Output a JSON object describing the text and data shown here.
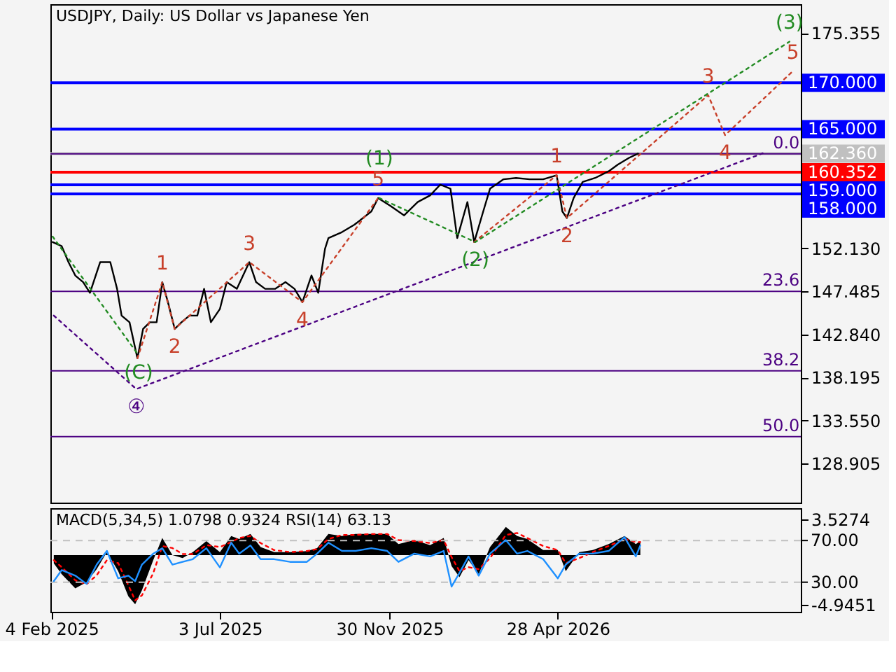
{
  "chart_data": [
    {
      "type": "line",
      "title": "USDJPY, Daily:  US Dollar vs Japanese Yen",
      "xlim": [
        "2025-02-03",
        "2026-11-29"
      ],
      "ylim": [
        124.68,
        178.49
      ],
      "yticks": [
        {
          "value": 175.355,
          "label": "175.355"
        },
        {
          "value": 152.13,
          "label": "152.130"
        },
        {
          "value": 147.485,
          "label": "147.485"
        },
        {
          "value": 142.84,
          "label": "142.840"
        },
        {
          "value": 138.195,
          "label": "138.195"
        },
        {
          "value": 133.55,
          "label": "133.550"
        },
        {
          "value": 128.905,
          "label": "128.905"
        }
      ],
      "tick_labels": "y",
      "series": [
        {
          "color": "#000000",
          "line_style": "solid",
          "x": [
            "2025-02-05",
            "2025-02-13",
            "2025-02-19",
            "2025-02-25",
            "2025-03-04",
            "2025-03-10",
            "2025-03-19",
            "2025-03-28",
            "2025-04-03",
            "2025-04-07",
            "2025-04-14",
            "2025-04-21",
            "2025-04-26",
            "2025-05-02",
            "2025-05-08",
            "2025-05-13",
            "2025-05-18",
            "2025-05-24",
            "2025-05-30",
            "2025-06-06",
            "2025-06-13",
            "2025-06-19",
            "2025-06-25",
            "2025-07-03",
            "2025-07-09",
            "2025-07-18",
            "2025-07-29",
            "2025-08-04",
            "2025-08-12",
            "2025-08-21",
            "2025-08-30",
            "2025-09-07",
            "2025-09-14",
            "2025-09-22",
            "2025-09-28",
            "2025-10-04",
            "2025-10-07",
            "2025-10-18",
            "2025-10-30",
            "2025-11-14",
            "2025-11-20",
            "2025-12-01",
            "2025-12-13",
            "2025-12-25",
            "2026-01-05",
            "2026-01-14",
            "2026-01-23",
            "2026-01-29",
            "2026-02-07",
            "2026-02-13",
            "2026-02-21",
            "2026-02-27",
            "2026-03-11",
            "2026-03-22",
            "2026-04-03",
            "2026-04-15",
            "2026-04-27",
            "2026-05-02",
            "2026-05-06",
            "2026-05-12",
            "2026-05-20",
            "2026-05-31",
            "2026-06-12",
            "2026-06-20",
            "2026-06-30",
            "2026-07-08"
          ],
          "values": [
            152.81,
            152.37,
            150.64,
            149.2,
            148.48,
            147.33,
            150.64,
            150.64,
            147.76,
            144.87,
            144.15,
            140.26,
            143.43,
            144.15,
            144.15,
            148.48,
            146.32,
            143.43,
            144.15,
            144.87,
            144.87,
            147.76,
            144.15,
            145.59,
            148.48,
            147.76,
            150.64,
            148.48,
            147.76,
            147.76,
            148.48,
            147.76,
            146.32,
            149.2,
            147.33,
            152.09,
            153.24,
            153.82,
            154.68,
            156.12,
            157.56,
            156.7,
            155.69,
            157.13,
            157.85,
            159.01,
            158.57,
            153.24,
            157.13,
            152.81,
            156.12,
            158.57,
            159.59,
            159.73,
            159.59,
            159.59,
            160.02,
            156.12,
            155.4,
            157.56,
            159.3,
            159.73,
            160.45,
            161.17,
            161.9,
            162.36
          ]
        },
        {
          "color": "#c8402a",
          "line_style": "dotted",
          "x": [
            "2025-04-21",
            "2025-05-13",
            "2025-05-24",
            "2025-07-29",
            "2025-09-14",
            "2025-11-20",
            "2025-12-15",
            "2026-02-13",
            "2026-04-27",
            "2026-05-06",
            "2026-09-08",
            "2026-09-23",
            "2026-11-22"
          ],
          "values": [
            140.26,
            148.48,
            143.43,
            150.64,
            146.32,
            157.56,
            null,
            152.81,
            160.02,
            155.4,
            168.67,
            164.35,
            171.27
          ]
        },
        {
          "color": "#228b22",
          "line_style": "dotted",
          "x": [
            "2025-02-05",
            "2025-04-22",
            "2025-08-01",
            "2025-11-21",
            "2026-02-14",
            "2026-11-19"
          ],
          "values": [
            153.4,
            140.6,
            null,
            157.56,
            152.81,
            174.45
          ]
        },
        {
          "color": "#4b0082",
          "line_style": "dotted",
          "x": [
            "2025-02-06",
            "2025-04-20",
            "2026-10-28"
          ],
          "values": [
            144.87,
            136.94,
            162.47
          ]
        }
      ],
      "ref_lines": [
        {
          "axis": "y",
          "value": 170,
          "label": "170.000",
          "color": "#0000ff"
        },
        {
          "axis": "y",
          "value": 165,
          "label": "165.000",
          "color": "#0000ff"
        },
        {
          "axis": "y",
          "value": 162.36,
          "label": "162.360",
          "color": "#c0c0c0"
        },
        {
          "axis": "y",
          "value": 160.352,
          "label": "160.352",
          "color": "#ff0000"
        },
        {
          "axis": "y",
          "value": 159,
          "label": "159.000",
          "color": "#0000ff"
        },
        {
          "axis": "y",
          "value": 158,
          "label": "158.000",
          "color": "#0000ff"
        },
        {
          "axis": "y",
          "value": 162.33,
          "color": "#4b0082"
        },
        {
          "axis": "y",
          "value": 147.485,
          "color": "#4b0082"
        },
        {
          "axis": "y",
          "value": 138.9,
          "color": "#4b0082"
        },
        {
          "axis": "y",
          "value": 131.8,
          "color": "#4b0082"
        }
      ],
      "annotations": [
        {
          "text": "1",
          "x": "2025-05-13",
          "y": 148.48
        },
        {
          "text": "2",
          "x": "2025-05-24",
          "y": 143.43
        },
        {
          "text": "3",
          "x": "2025-07-29",
          "y": 150.64
        },
        {
          "text": "4",
          "x": "2025-09-14",
          "y": 146.32
        },
        {
          "text": "5",
          "x": "2025-11-20",
          "y": 157.56
        },
        {
          "text": "1",
          "x": "2026-04-27",
          "y": 160.02
        },
        {
          "text": "2",
          "x": "2026-05-06",
          "y": 155.4
        },
        {
          "text": "3",
          "x": "2026-09-08",
          "y": 168.67
        },
        {
          "text": "4",
          "x": "2026-09-23",
          "y": 164.35
        },
        {
          "text": "5",
          "x": "2026-11-22",
          "y": 171.27
        },
        {
          "text": "(C)",
          "x": "2025-04-22",
          "y": 140.6
        },
        {
          "text": "(1)",
          "x": "2025-11-21",
          "y": 157.56
        },
        {
          "text": "(2)",
          "x": "2026-02-14",
          "y": 152.81
        },
        {
          "text": "(3)",
          "x": "2026-11-19",
          "y": 174.45
        },
        {
          "text": "④",
          "x": "2025-04-20",
          "y": 136.94
        },
        {
          "text": "0.0",
          "x": "2026-11-28",
          "y": 162.33
        },
        {
          "text": "23.6",
          "x": "2026-11-28",
          "y": 147.485
        },
        {
          "text": "38.2",
          "x": "2026-11-28",
          "y": 138.9
        },
        {
          "text": "50.0",
          "x": "2026-11-28",
          "y": 131.8
        }
      ]
    },
    {
      "type": "area",
      "title": "MACD(5,34,5) 1.0798 0.9324 RSI(14) 63.13",
      "xlim": [
        "2025-02-03",
        "2026-11-29"
      ],
      "xticks": [
        {
          "value": "2025-02-04",
          "label": "4 Feb 2025"
        },
        {
          "value": "2025-07-03",
          "label": "3 Jul 2025"
        },
        {
          "value": "2025-11-30",
          "label": "30 Nov 2025"
        },
        {
          "value": "2026-04-28",
          "label": "28 Apr 2026"
        }
      ],
      "ylim": [
        -5.64,
        4.665
      ],
      "yticks": [
        3.5274,
        -4.9451
      ],
      "y2lim": [
        1.6,
        101
      ],
      "y2ticks": [
        {
          "value": 70,
          "label": "70.00"
        },
        {
          "value": 30,
          "label": "30.00"
        }
      ],
      "x": [
        "2025-02-06",
        "2025-02-13",
        "2025-02-25",
        "2025-03-07",
        "2025-03-16",
        "2025-03-25",
        "2025-04-04",
        "2025-04-13",
        "2025-04-19",
        "2025-04-25",
        "2025-05-05",
        "2025-05-13",
        "2025-05-22",
        "2025-05-31",
        "2025-06-09",
        "2025-06-21",
        "2025-07-03",
        "2025-07-13",
        "2025-07-20",
        "2025-07-30",
        "2025-08-08",
        "2025-08-20",
        "2025-09-03",
        "2025-09-18",
        "2025-09-27",
        "2025-10-07",
        "2025-10-19",
        "2025-10-31",
        "2025-11-14",
        "2025-11-28",
        "2025-12-08",
        "2025-12-22",
        "2026-01-05",
        "2026-01-17",
        "2026-01-24",
        "2026-01-31",
        "2026-02-08",
        "2026-02-17",
        "2026-02-27",
        "2026-03-13",
        "2026-03-23",
        "2026-04-01",
        "2026-04-15",
        "2026-04-28",
        "2026-05-05",
        "2026-05-17",
        "2026-05-29",
        "2026-06-12",
        "2026-06-26",
        "2026-07-06",
        "2026-07-10"
      ],
      "series": [
        {
          "color": "#000000",
          "values": [
            -0.82,
            -1.9,
            -3.3,
            -2.7,
            -1.4,
            0.3,
            -1.6,
            -4.1,
            -4.9,
            -3.5,
            -0.5,
            1.7,
            0,
            -0.3,
            0.3,
            1.4,
            0.3,
            1.9,
            1.6,
            2.1,
            0.8,
            0.3,
            0.3,
            0.4,
            0.7,
            2.1,
            1.9,
            2.1,
            2.1,
            2.1,
            1.1,
            1.5,
            1.0,
            1.7,
            -1.1,
            -2.2,
            -0.5,
            -1.9,
            0.8,
            2.8,
            1.9,
            1.6,
            0.5,
            0.5,
            -1.6,
            0.3,
            0.5,
            1.1,
            1.9,
            1.1,
            1.4
          ]
        },
        {
          "type": "line",
          "color": "#ff0000",
          "line_style": "dotted",
          "values": [
            -0.5,
            -1.2,
            -2.5,
            -2.9,
            -2.0,
            -0.5,
            -0.8,
            -3.0,
            -4.5,
            -4.0,
            -1.8,
            0.9,
            0.7,
            0.1,
            0.1,
            1.0,
            0.8,
            1.3,
            1.7,
            1.9,
            1.2,
            0.5,
            0.3,
            0.4,
            0.6,
            1.6,
            2.0,
            2.0,
            2.1,
            2.1,
            1.5,
            1.4,
            1.2,
            1.5,
            -0.2,
            -1.6,
            -1.2,
            -1.4,
            -0.3,
            2.0,
            2.2,
            1.7,
            0.9,
            0.5,
            -0.8,
            -0.3,
            0.3,
            0.9,
            1.6,
            1.3,
            1.3
          ]
        },
        {
          "type": "line",
          "axis": "y2",
          "color": "#1e90ff",
          "line_style": "solid",
          "values": [
            31,
            41.6,
            36.3,
            28.4,
            46.9,
            60,
            33.7,
            36.3,
            31,
            46.9,
            57.4,
            62.6,
            46.9,
            49.5,
            52.1,
            62.6,
            44.2,
            67.9,
            57.4,
            65.3,
            52.1,
            52.1,
            49.5,
            49.5,
            57.4,
            67.9,
            60,
            60,
            62.6,
            60,
            49.5,
            57.4,
            54.7,
            60,
            25.8,
            39,
            54.7,
            36.3,
            57.4,
            70.5,
            57.4,
            60,
            52.1,
            33.7,
            46.9,
            57.4,
            57.4,
            60,
            73.2,
            54.7,
            65.3
          ]
        }
      ],
      "ref_lines": [
        {
          "axis": "y2",
          "value": 70,
          "color": "#c0c0c0",
          "line_style": "dashed"
        },
        {
          "axis": "y2",
          "value": 30,
          "color": "#c0c0c0",
          "line_style": "dashed"
        }
      ]
    }
  ]
}
